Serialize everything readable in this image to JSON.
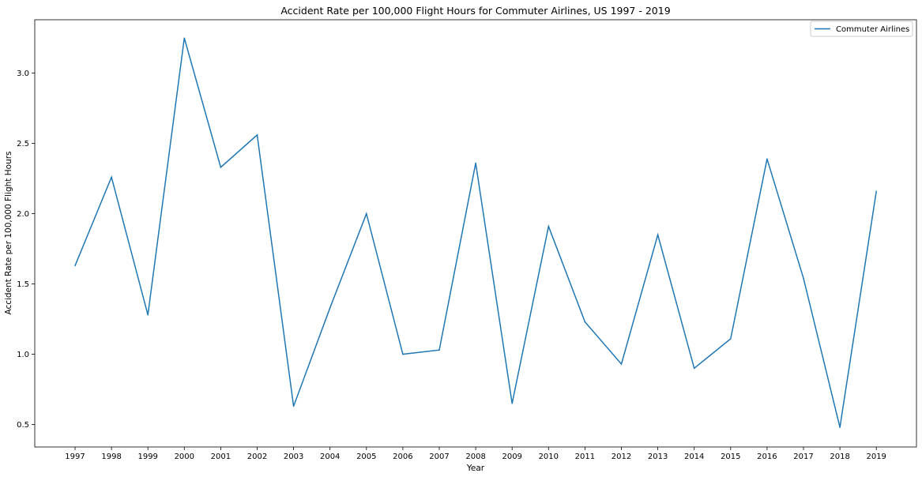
{
  "chart_data": {
    "type": "line",
    "title": "Accident Rate per 100,000 Flight Hours for Commuter Airlines, US 1997 - 2019",
    "xlabel": "Year",
    "ylabel": "Accident Rate per 100,000 Flight Hours",
    "x": [
      "1997",
      "1998",
      "1999",
      "2000",
      "2001",
      "2002",
      "2003",
      "2004",
      "2005",
      "2006",
      "2007",
      "2008",
      "2009",
      "2010",
      "2011",
      "2012",
      "2013",
      "2014",
      "2015",
      "2016",
      "2017",
      "2018",
      "2019"
    ],
    "series": [
      {
        "name": "Commuter Airlines",
        "color": "#1f77b4",
        "values": [
          1.63,
          2.26,
          1.28,
          3.25,
          2.33,
          2.56,
          0.63,
          1.33,
          2.0,
          1.0,
          1.03,
          2.36,
          0.65,
          1.91,
          1.23,
          0.93,
          1.85,
          0.9,
          1.11,
          2.39,
          1.54,
          0.48,
          2.16
        ]
      }
    ],
    "ylim": [
      0.34,
      3.38
    ],
    "yticks": [
      "0.5",
      "1.0",
      "1.5",
      "2.0",
      "2.5",
      "3.0"
    ],
    "grid": false,
    "legend": "top-right"
  }
}
